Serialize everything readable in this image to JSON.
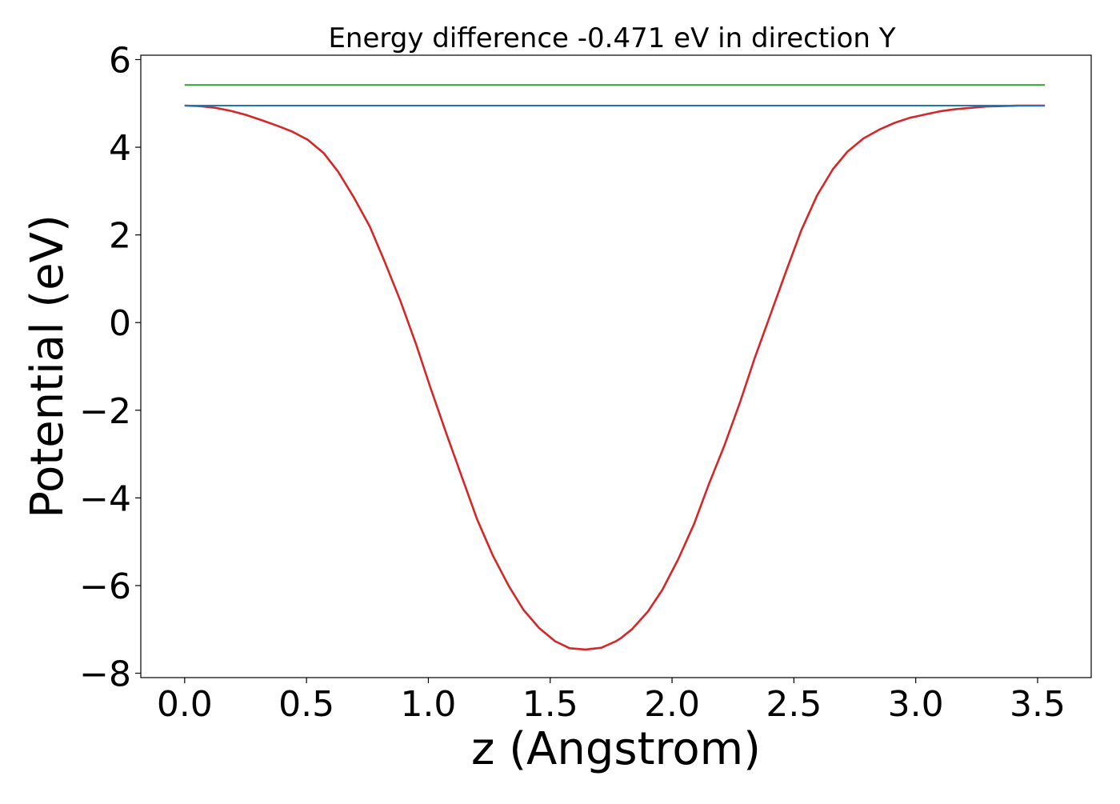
{
  "chart_data": {
    "type": "line",
    "title": "Energy difference -0.471 eV in direction Y",
    "xlabel": "z (Angstrom)",
    "ylabel": "Potential (eV)",
    "xlim": [
      -0.18,
      3.72
    ],
    "ylim": [
      -8.1,
      6.1
    ],
    "xticks": [
      0.0,
      0.5,
      1.0,
      1.5,
      2.0,
      2.5,
      3.0,
      3.5
    ],
    "xtick_labels": [
      "0.0",
      "0.5",
      "1.0",
      "1.5",
      "2.0",
      "2.5",
      "3.0",
      "3.5"
    ],
    "yticks": [
      -8,
      -6,
      -4,
      -2,
      0,
      2,
      4,
      6
    ],
    "ytick_labels": [
      "−8",
      "−6",
      "−4",
      "−2",
      "0",
      "2",
      "4",
      "6"
    ],
    "grid": false,
    "series": [
      {
        "color": "#d62728",
        "x": [
          0.0,
          0.06,
          0.125,
          0.19,
          0.25,
          0.315,
          0.38,
          0.44,
          0.505,
          0.57,
          0.63,
          0.695,
          0.76,
          0.82,
          0.885,
          0.95,
          1.01,
          1.075,
          1.14,
          1.2,
          1.265,
          1.33,
          1.39,
          1.455,
          1.52,
          1.58,
          1.645,
          1.71,
          1.77,
          1.79,
          1.835,
          1.9,
          1.96,
          2.025,
          2.09,
          2.15,
          2.215,
          2.28,
          2.34,
          2.405,
          2.47,
          2.53,
          2.595,
          2.66,
          2.72,
          2.785,
          2.85,
          2.91,
          2.975,
          3.04,
          3.1,
          3.165,
          3.23,
          3.29,
          3.355,
          3.42,
          3.48,
          3.53
        ],
        "y": [
          4.95,
          4.94,
          4.9,
          4.83,
          4.74,
          4.62,
          4.49,
          4.36,
          4.17,
          3.87,
          3.44,
          2.85,
          2.19,
          1.4,
          0.5,
          -0.5,
          -1.51,
          -2.55,
          -3.56,
          -4.49,
          -5.32,
          -6.01,
          -6.55,
          -6.97,
          -7.27,
          -7.43,
          -7.46,
          -7.42,
          -7.27,
          -7.2,
          -7.0,
          -6.6,
          -6.1,
          -5.4,
          -4.6,
          -3.7,
          -2.8,
          -1.8,
          -0.8,
          0.2,
          1.2,
          2.1,
          2.9,
          3.5,
          3.9,
          4.2,
          4.4,
          4.55,
          4.67,
          4.75,
          4.82,
          4.87,
          4.9,
          4.93,
          4.94,
          4.95,
          4.95,
          4.95
        ]
      },
      {
        "color": "#2ca02c",
        "x": [
          0.0,
          3.53
        ],
        "y": [
          5.42,
          5.42
        ]
      },
      {
        "color": "#1f77b4",
        "x": [
          0.0,
          3.53
        ],
        "y": [
          4.95,
          4.95
        ]
      }
    ]
  }
}
